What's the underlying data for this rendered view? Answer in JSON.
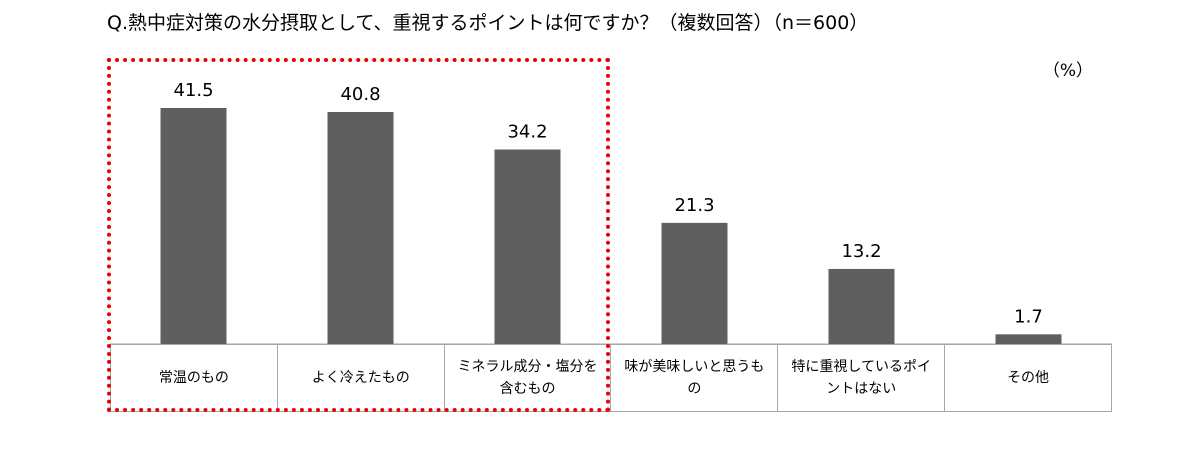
{
  "title": "Q.熱中症対策の水分摂取として、重視するポイントは何ですか？（複数回答）（n＝600）",
  "unit_label": "（%）",
  "colors": {
    "bar": "#5f5f5f",
    "highlight": "#e8000b",
    "grid": "#a6a6a6"
  },
  "chart_data": {
    "type": "bar",
    "categories": [
      "常温のもの",
      "よく冷えたもの",
      "ミネラル成分・塩分を含むもの",
      "味が美味しいと思うもの",
      "特に重視しているポイントはない",
      "その他"
    ],
    "category_lines": [
      [
        "常温のもの"
      ],
      [
        "よく冷えたもの"
      ],
      [
        "ミネラル成分・塩分を",
        "含むもの"
      ],
      [
        "味が美味しいと思うも",
        "の"
      ],
      [
        "特に重視しているポイ",
        "ントはない"
      ],
      [
        "その他"
      ]
    ],
    "values": [
      41.5,
      40.8,
      34.2,
      21.3,
      13.2,
      1.7
    ],
    "value_labels": [
      "41.5",
      "40.8",
      "34.2",
      "21.3",
      "13.2",
      "1.7"
    ],
    "ylim": [
      0,
      50
    ],
    "grid": false,
    "legend": "none",
    "highlighted_categories": [
      0,
      1,
      2
    ]
  }
}
